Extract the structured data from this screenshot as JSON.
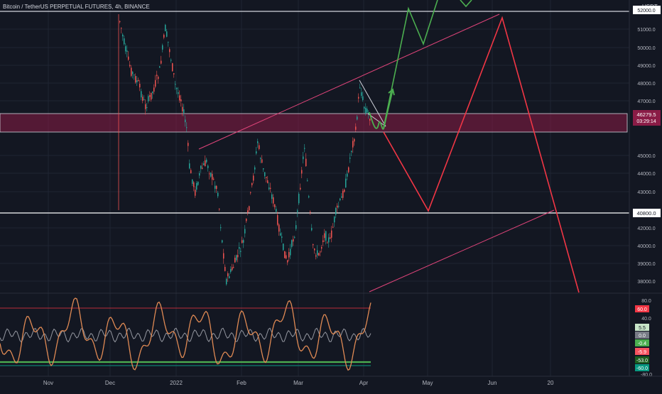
{
  "header": {
    "title": "Bitcoin / TetherUS PERPETUAL FUTURES, 4h, BINANCE"
  },
  "currency_label": "USDT",
  "price_axis": {
    "ticks": [
      "51000.0",
      "50000.0",
      "49000.0",
      "48000.0",
      "47000.0",
      "45000.0",
      "44000.0",
      "43000.0",
      "42000.0",
      "40000.0",
      "39000.0",
      "38000.0",
      "37000.0"
    ],
    "current_price_label": "46279.5",
    "countdown_label": "03:29:14",
    "support_label": "40800.0",
    "resistance_label": "52000.0"
  },
  "oscillator_axis": {
    "ticks": [
      "80.0",
      "40.0",
      "-80.0"
    ],
    "badges": [
      {
        "text": "60.0",
        "color": "#f23645"
      },
      {
        "text": "5.5",
        "color": "#c8e6c9",
        "text_color": "#131722"
      },
      {
        "text": "0.0",
        "color": "#787b86"
      },
      {
        "text": "-0.4",
        "color": "#4caf50"
      },
      {
        "text": "-5.9",
        "color": "#f7525f"
      },
      {
        "text": "-53.0",
        "color": "#1b5e20"
      },
      {
        "text": "-60.0",
        "color": "#089981"
      }
    ]
  },
  "time_axis": {
    "labels": [
      "Nov",
      "Dec",
      "2022",
      "Feb",
      "Mar",
      "Apr",
      "May",
      "Jun",
      "20"
    ]
  },
  "colors": {
    "background": "#131722",
    "grid": "#1f2433",
    "candle_up": "#26a69a",
    "candle_down": "#ef5350",
    "zone_fill": "#8a1c46",
    "trend_line": "#e0447a",
    "bear_projection": "#f23645",
    "bull_projection": "#4caf50",
    "osc_main": "#e08a54",
    "osc_signal": "#9598a1"
  }
}
